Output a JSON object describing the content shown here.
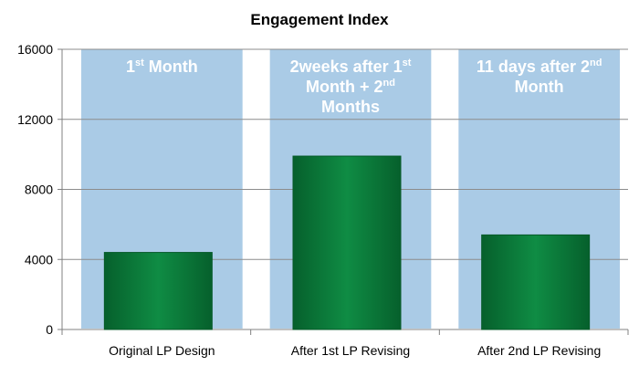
{
  "chart_data": {
    "type": "bar",
    "title": "Engagement Index",
    "xlabel": "",
    "ylabel": "",
    "categories": [
      "Original LP Design",
      "After 1st LP Revising",
      "After 2nd LP Revising"
    ],
    "values": [
      4400,
      9900,
      5400
    ],
    "ylim": [
      0,
      16000
    ],
    "yticks": [
      "0",
      "4000",
      "8000",
      "12000",
      "16000"
    ],
    "grid": true,
    "legend": "none",
    "colors": {
      "bar": "#0a7a3a",
      "bar_edge": "#055a28",
      "band": "#aacbe6",
      "grid": "#8c8c8c"
    },
    "annotations": [
      [
        [
          {
            "t": "1"
          },
          {
            "t": "st",
            "sup": true
          },
          {
            "t": " Month"
          }
        ]
      ],
      [
        [
          {
            "t": "2weeks after 1"
          },
          {
            "t": "st",
            "sup": true
          }
        ],
        [
          {
            "t": "Month + 2"
          },
          {
            "t": "nd",
            "sup": true
          }
        ],
        [
          {
            "t": "Months"
          }
        ]
      ],
      [
        [
          {
            "t": "11 days after 2"
          },
          {
            "t": "nd",
            "sup": true
          }
        ],
        [
          {
            "t": "Month"
          }
        ]
      ]
    ]
  }
}
